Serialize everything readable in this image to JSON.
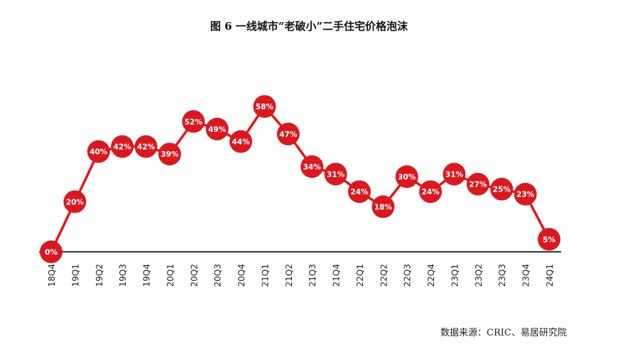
{
  "title": "图 6   一线城市“老破小”二手住宅价格泡沫",
  "source": "数据来源：CRIC、易居研究院",
  "colors": {
    "line": "#e1161c",
    "marker": "#d71a20",
    "axis": "#333333",
    "label": "#ffffff"
  },
  "chart_data": {
    "type": "line",
    "title": "图 6   一线城市“老破小”二手住宅价格泡沫",
    "xlabel": "",
    "ylabel": "",
    "categories": [
      "18Q4",
      "19Q1",
      "19Q2",
      "19Q3",
      "19Q4",
      "20Q1",
      "20Q2",
      "20Q3",
      "20Q4",
      "21Q1",
      "21Q2",
      "21Q3",
      "21Q4",
      "22Q1",
      "22Q2",
      "22Q3",
      "22Q4",
      "23Q1",
      "23Q2",
      "23Q3",
      "23Q4",
      "24Q1"
    ],
    "values": [
      0,
      20,
      40,
      42,
      42,
      39,
      52,
      49,
      44,
      58,
      47,
      34,
      31,
      24,
      18,
      30,
      24,
      31,
      27,
      25,
      23,
      5
    ],
    "data_labels": [
      "0%",
      "20%",
      "40%",
      "42%",
      "42%",
      "39%",
      "52%",
      "49%",
      "44%",
      "58%",
      "47%",
      "34%",
      "31%",
      "24%",
      "18%",
      "30%",
      "24%",
      "31%",
      "27%",
      "25%",
      "23%",
      "5%"
    ],
    "ylim": [
      0,
      60
    ],
    "grid": false,
    "legend": "none"
  }
}
